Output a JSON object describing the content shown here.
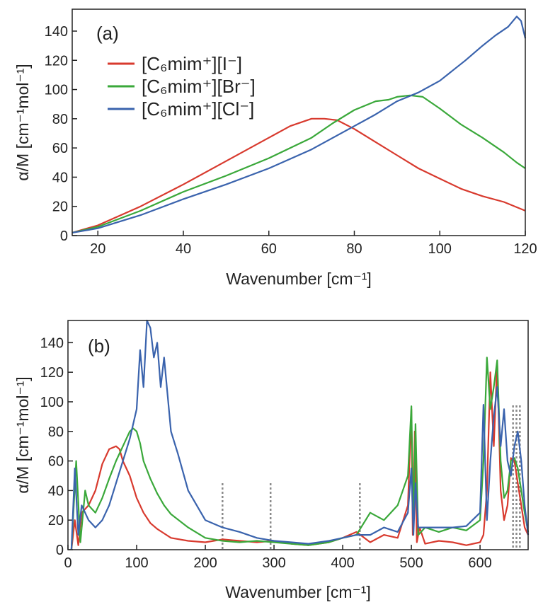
{
  "chart_data": [
    {
      "panel": "(a)",
      "type": "line",
      "xlabel": "Wavenumber [cm⁻¹]",
      "ylabel": "α/M [cm⁻¹mol⁻¹]",
      "xlim": [
        14,
        120
      ],
      "ylim": [
        0,
        155
      ],
      "xticks": [
        20,
        40,
        60,
        80,
        100,
        120
      ],
      "yticks": [
        0,
        20,
        40,
        60,
        80,
        100,
        120,
        140
      ],
      "legend_position": "top-left",
      "series": [
        {
          "name": "[C₆mim⁺][I⁻]",
          "color": "#d83a2e",
          "x": [
            14,
            20,
            30,
            40,
            50,
            60,
            65,
            70,
            73,
            76,
            80,
            85,
            90,
            95,
            100,
            105,
            110,
            115,
            120
          ],
          "y": [
            2,
            7,
            20,
            35,
            51,
            67,
            75,
            80,
            80,
            79,
            73,
            64,
            55,
            46,
            39,
            32,
            27,
            23,
            17
          ]
        },
        {
          "name": "[C₆mim⁺][Br⁻]",
          "color": "#3aa83a",
          "x": [
            14,
            20,
            30,
            40,
            50,
            60,
            70,
            75,
            80,
            85,
            88,
            90,
            93,
            96,
            100,
            105,
            110,
            115,
            118,
            120
          ],
          "y": [
            2,
            6,
            17,
            30,
            41,
            53,
            67,
            77,
            86,
            92,
            93,
            95,
            96,
            95,
            87,
            76,
            67,
            57,
            50,
            46
          ]
        },
        {
          "name": "[C₆mim⁺][Cl⁻]",
          "color": "#3a63ad",
          "x": [
            14,
            20,
            30,
            40,
            50,
            60,
            70,
            75,
            80,
            85,
            90,
            95,
            100,
            103,
            106,
            110,
            113,
            116,
            118,
            119,
            120
          ],
          "y": [
            2,
            5,
            14,
            25,
            35,
            46,
            59,
            67,
            75,
            83,
            92,
            98,
            106,
            113,
            120,
            130,
            137,
            143,
            150,
            147,
            135
          ]
        }
      ]
    },
    {
      "panel": "(b)",
      "type": "line",
      "xlabel": "Wavenumber [cm⁻¹]",
      "ylabel": "α/M [cm⁻¹mol⁻¹]",
      "xlim": [
        0,
        670
      ],
      "ylim": [
        0,
        155
      ],
      "xticks": [
        0,
        100,
        200,
        300,
        400,
        500,
        600
      ],
      "yticks": [
        0,
        20,
        40,
        60,
        80,
        100,
        120,
        140
      ],
      "marker_lines": [
        225,
        295,
        425,
        648,
        653,
        658
      ],
      "series": [
        {
          "name": "[C₆mim⁺][I⁻]",
          "color": "#d83a2e",
          "x": [
            5,
            10,
            15,
            20,
            30,
            40,
            50,
            60,
            70,
            75,
            80,
            90,
            100,
            110,
            120,
            130,
            140,
            150,
            175,
            200,
            225,
            250,
            275,
            300,
            325,
            350,
            380,
            400,
            420,
            440,
            460,
            480,
            495,
            500,
            502,
            505,
            508,
            512,
            520,
            540,
            560,
            580,
            600,
            605,
            610,
            615,
            620,
            625,
            630,
            635,
            640,
            645,
            650,
            655,
            660,
            665,
            670
          ],
          "y": [
            0,
            20,
            3,
            25,
            30,
            40,
            58,
            68,
            70,
            68,
            60,
            50,
            35,
            25,
            18,
            14,
            11,
            8,
            6,
            5,
            7,
            6,
            5,
            6,
            4,
            3,
            5,
            8,
            12,
            5,
            10,
            8,
            30,
            95,
            10,
            80,
            5,
            15,
            4,
            6,
            5,
            3,
            5,
            10,
            40,
            120,
            70,
            127,
            40,
            20,
            30,
            62,
            60,
            45,
            30,
            15,
            10
          ]
        },
        {
          "name": "[C₆mim⁺][Br⁻]",
          "color": "#3aa83a",
          "x": [
            5,
            12,
            18,
            25,
            30,
            40,
            50,
            60,
            70,
            80,
            90,
            95,
            100,
            105,
            110,
            120,
            130,
            140,
            150,
            175,
            200,
            225,
            250,
            275,
            300,
            325,
            350,
            380,
            400,
            420,
            440,
            460,
            480,
            495,
            500,
            503,
            506,
            510,
            520,
            540,
            560,
            580,
            600,
            605,
            610,
            615,
            620,
            625,
            630,
            635,
            640,
            645,
            650,
            655,
            660,
            665,
            670
          ],
          "y": [
            0,
            60,
            5,
            40,
            30,
            25,
            35,
            48,
            60,
            70,
            80,
            82,
            80,
            72,
            60,
            48,
            38,
            30,
            24,
            15,
            8,
            6,
            5,
            6,
            5,
            4,
            3,
            5,
            8,
            10,
            25,
            20,
            30,
            50,
            97,
            15,
            85,
            10,
            15,
            12,
            15,
            13,
            20,
            60,
            130,
            95,
            110,
            128,
            60,
            35,
            40,
            60,
            62,
            55,
            40,
            25,
            12
          ]
        },
        {
          "name": "[C₆mim⁺][Cl⁻]",
          "color": "#3a63ad",
          "x": [
            5,
            10,
            15,
            20,
            30,
            40,
            50,
            60,
            70,
            80,
            90,
            100,
            105,
            110,
            115,
            120,
            125,
            130,
            135,
            140,
            150,
            160,
            175,
            200,
            225,
            250,
            275,
            300,
            325,
            350,
            380,
            400,
            420,
            440,
            460,
            480,
            495,
            500,
            503,
            506,
            510,
            520,
            540,
            560,
            580,
            600,
            605,
            610,
            615,
            620,
            625,
            630,
            635,
            640,
            645,
            650,
            655,
            660,
            665,
            670
          ],
          "y": [
            0,
            55,
            10,
            30,
            20,
            15,
            20,
            30,
            45,
            60,
            75,
            95,
            135,
            110,
            155,
            150,
            130,
            140,
            110,
            130,
            80,
            65,
            40,
            20,
            15,
            12,
            8,
            6,
            5,
            4,
            6,
            8,
            10,
            10,
            15,
            12,
            25,
            55,
            10,
            45,
            15,
            15,
            15,
            15,
            16,
            25,
            98,
            20,
            60,
            90,
            110,
            70,
            95,
            60,
            50,
            70,
            80,
            60,
            30,
            10
          ]
        }
      ]
    }
  ]
}
